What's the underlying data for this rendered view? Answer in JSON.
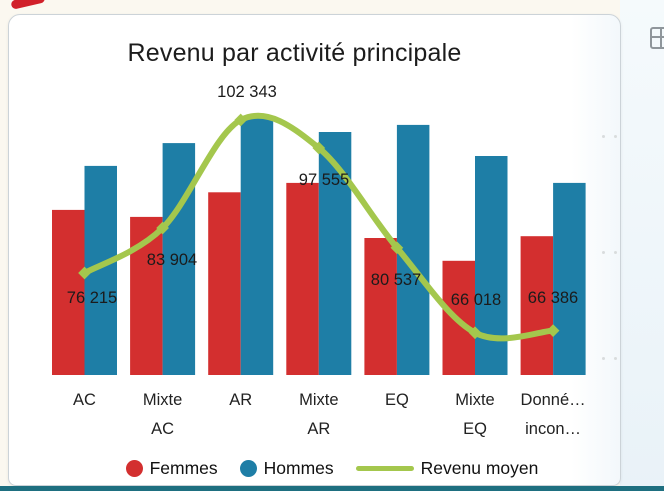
{
  "chart_data": {
    "type": "combo-bar-line",
    "title": "Revenu par activité principale",
    "categories": [
      "AC",
      "Mixte AC",
      "AR",
      "Mixte AR",
      "EQ",
      "Mixte EQ",
      "Donné… incon…"
    ],
    "category_display_lines": [
      [
        "AC"
      ],
      [
        "Mixte",
        "AC"
      ],
      [
        "AR"
      ],
      [
        "Mixte",
        "AR"
      ],
      [
        "EQ"
      ],
      [
        "Mixte",
        "EQ"
      ],
      [
        "Donné…",
        "incon…"
      ]
    ],
    "series": [
      {
        "name": "Femmes",
        "type": "bar",
        "color": "#d32f2f",
        "values": [
          87000,
          85800,
          90000,
          91600,
          82200,
          78300,
          82500
        ],
        "values_estimated": true
      },
      {
        "name": "Hommes",
        "type": "bar",
        "color": "#1e7ea6",
        "values": [
          94500,
          98400,
          102900,
          100300,
          101500,
          96200,
          91600
        ],
        "values_estimated": true
      },
      {
        "name": "Revenu moyen",
        "type": "line",
        "color": "#a4c74d",
        "values": [
          76215,
          83904,
          102343,
          97555,
          80537,
          66018,
          66386
        ],
        "data_labels": [
          "76 215",
          "83 904",
          "102 343",
          "97 555",
          "80 537",
          "66 018",
          "66 386"
        ]
      }
    ],
    "value_axis": {
      "visible": false,
      "approx_min": 58800,
      "approx_max": 103400
    },
    "grid": false,
    "legend_position": "bottom"
  },
  "legend": {
    "items": [
      {
        "label": "Femmes",
        "color": "#d32f2f",
        "marker": "circle"
      },
      {
        "label": "Hommes",
        "color": "#1e7ea6",
        "marker": "circle"
      },
      {
        "label": "Revenu moyen",
        "color": "#a4c74d",
        "marker": "line"
      }
    ]
  },
  "decorations": {
    "bottom_bar_color": "#1e6f80",
    "swoosh_color": "#d1202a",
    "icon_color": "#8f969b"
  }
}
